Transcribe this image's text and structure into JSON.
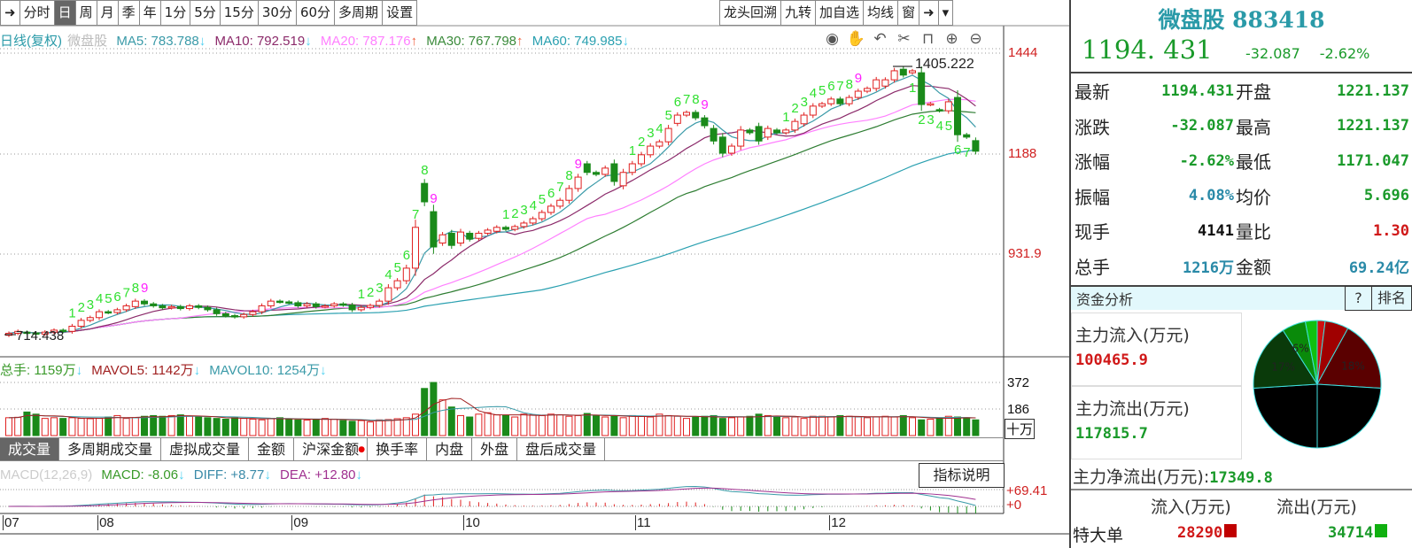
{
  "toolbar": {
    "left": [
      "分时",
      "日",
      "周",
      "月",
      "季",
      "年",
      "1分",
      "5分",
      "15分",
      "30分",
      "60分",
      "多周期",
      "设置"
    ],
    "active": "日",
    "right": [
      "龙头回溯",
      "九转",
      "加自选",
      "均线",
      "窗"
    ],
    "collapse_icon": "collapse-right-icon",
    "dropdown_icon": "chevron-down-icon"
  },
  "legend": {
    "period": "日线(复权)",
    "name": "微盘股",
    "ma5": "MA5: 783.788",
    "ma10": "MA10: 792.519",
    "ma20": "MA20: 787.176",
    "ma30": "MA30: 767.798",
    "ma60": "MA60: 749.985",
    "down": "↓",
    "up": "↑"
  },
  "tools": [
    "eye-icon",
    "hand-icon",
    "undo-icon",
    "scissors-icon",
    "lock-icon",
    "zoom-in-icon",
    "zoom-out-icon"
  ],
  "colors": {
    "up": "#e02020",
    "down": "#1a8a1a",
    "ma5": "#3a9aa8",
    "ma10": "#8b2a6a",
    "ma20": "#ff80ff",
    "ma30": "#2e7d32",
    "ma60": "#2aa0b0",
    "accent": "#2a9aa8"
  },
  "price_axis": {
    "labels": [
      "1444",
      "1188",
      "931.9"
    ],
    "values": [
      1444,
      1188,
      931.9
    ]
  },
  "max_label": "1405.222",
  "min_label": "714.438",
  "chart_data": {
    "type": "candlestick",
    "candles": [
      [
        725,
        730
      ],
      [
        730,
        735
      ],
      [
        733,
        731
      ],
      [
        731,
        728
      ],
      [
        728,
        733
      ],
      [
        733,
        738
      ],
      [
        738,
        735
      ],
      [
        735,
        748
      ],
      [
        748,
        763
      ],
      [
        763,
        770
      ],
      [
        770,
        785
      ],
      [
        785,
        783
      ],
      [
        783,
        790
      ],
      [
        790,
        800
      ],
      [
        798,
        812
      ],
      [
        812,
        805
      ],
      [
        805,
        800
      ],
      [
        800,
        795
      ],
      [
        795,
        798
      ],
      [
        798,
        793
      ],
      [
        793,
        800
      ],
      [
        800,
        796
      ],
      [
        796,
        790
      ],
      [
        790,
        780
      ],
      [
        780,
        775
      ],
      [
        775,
        772
      ],
      [
        772,
        778
      ],
      [
        778,
        785
      ],
      [
        785,
        800
      ],
      [
        800,
        812
      ],
      [
        812,
        810
      ],
      [
        810,
        808
      ],
      [
        808,
        800
      ],
      [
        800,
        805
      ],
      [
        805,
        798
      ],
      [
        798,
        800
      ],
      [
        800,
        805
      ],
      [
        805,
        802
      ],
      [
        802,
        790
      ],
      [
        790,
        796
      ],
      [
        796,
        801
      ],
      [
        801,
        812
      ],
      [
        812,
        846
      ],
      [
        846,
        864
      ],
      [
        864,
        896
      ],
      [
        896,
        1000
      ],
      [
        1112,
        1065
      ],
      [
        1040,
        950
      ],
      [
        960,
        981
      ],
      [
        985,
        954
      ],
      [
        960,
        988
      ],
      [
        985,
        970
      ],
      [
        972,
        985
      ],
      [
        985,
        993
      ],
      [
        990,
        1000
      ],
      [
        1000,
        995
      ],
      [
        995,
        1002
      ],
      [
        1002,
        1011
      ],
      [
        1011,
        1022
      ],
      [
        1022,
        1038
      ],
      [
        1038,
        1054
      ],
      [
        1054,
        1069
      ],
      [
        1069,
        1099
      ],
      [
        1099,
        1128
      ],
      [
        1162,
        1140
      ],
      [
        1140,
        1135
      ],
      [
        1135,
        1151
      ],
      [
        1162,
        1117
      ],
      [
        1106,
        1140
      ],
      [
        1140,
        1162
      ],
      [
        1162,
        1185
      ],
      [
        1185,
        1207
      ],
      [
        1207,
        1218
      ],
      [
        1218,
        1252
      ],
      [
        1265,
        1286
      ],
      [
        1286,
        1293
      ],
      [
        1293,
        1279
      ],
      [
        1279,
        1259
      ],
      [
        1252,
        1220
      ],
      [
        1230,
        1189
      ],
      [
        1189,
        1207
      ],
      [
        1207,
        1248
      ],
      [
        1248,
        1241
      ],
      [
        1257,
        1220
      ],
      [
        1230,
        1252
      ],
      [
        1248,
        1241
      ],
      [
        1241,
        1248
      ],
      [
        1248,
        1270
      ],
      [
        1264,
        1286
      ],
      [
        1286,
        1309
      ],
      [
        1309,
        1315
      ],
      [
        1315,
        1327
      ],
      [
        1327,
        1315
      ],
      [
        1315,
        1331
      ],
      [
        1331,
        1347
      ],
      [
        1347,
        1354
      ],
      [
        1354,
        1376
      ],
      [
        1360,
        1376
      ],
      [
        1376,
        1399
      ],
      [
        1403,
        1388
      ],
      [
        1394,
        1399
      ],
      [
        1394,
        1313
      ],
      [
        1313,
        1315
      ],
      [
        1300,
        1297
      ],
      [
        1297,
        1320
      ],
      [
        1331,
        1236
      ],
      [
        1236,
        1230
      ],
      [
        1221,
        1194
      ]
    ],
    "volume": [
      125,
      128,
      165,
      150,
      120,
      125,
      120,
      125,
      120,
      118,
      120,
      130,
      140,
      120,
      125,
      135,
      140,
      135,
      140,
      145,
      135,
      130,
      125,
      120,
      115,
      125,
      120,
      115,
      110,
      120,
      125,
      115,
      110,
      108,
      112,
      120,
      115,
      105,
      100,
      105,
      95,
      110,
      112,
      118,
      125,
      150,
      330,
      372,
      250,
      200,
      140,
      130,
      150,
      160,
      145,
      140,
      130,
      150,
      145,
      140,
      150,
      145,
      135,
      140,
      155,
      140,
      130,
      135,
      125,
      140,
      135,
      130,
      150,
      140,
      135,
      120,
      130,
      135,
      140,
      120,
      125,
      130,
      135,
      150,
      140,
      130,
      125,
      130,
      120,
      135,
      135,
      130,
      140,
      135,
      130,
      125,
      130,
      135,
      130,
      140,
      125,
      110,
      115,
      120,
      135,
      130,
      125,
      110
    ],
    "volume_axis": {
      "labels": [
        "372",
        "186"
      ],
      "values": [
        372,
        186
      ],
      "unit": "十万"
    },
    "x_ticks": [
      {
        "label": "07",
        "i": 0
      },
      {
        "label": "08",
        "i": 10.5
      },
      {
        "label": "09",
        "i": 32
      },
      {
        "label": "10",
        "i": 51
      },
      {
        "label": "11",
        "i": 70
      },
      {
        "label": "12",
        "i": 91.5
      }
    ],
    "td_sequences": [
      {
        "start": 7,
        "pos": "above",
        "count": 9
      },
      {
        "start": 39,
        "pos": "above",
        "count": 9
      },
      {
        "start": 55,
        "pos": "above",
        "count": 9
      },
      {
        "start": 69,
        "pos": "above",
        "count": 9
      },
      {
        "start": 86,
        "pos": "above",
        "count": 9
      },
      {
        "start": 100,
        "pos": "below",
        "count": 7
      }
    ]
  },
  "volume_legend": {
    "total": "总手: 1159万",
    "mavol5": "MAVOL5: 1142万",
    "mavol10": "MAVOL10: 1254万"
  },
  "tabs": [
    "成交量",
    "多周期成交量",
    "虚拟成交量",
    "金额",
    "沪深金额",
    "换手率",
    "内盘",
    "外盘",
    "盘后成交量"
  ],
  "macd_legend": {
    "name": "MACD(12,26,9)",
    "macd": "MACD: -8.06",
    "diff": "DIFF: +8.77",
    "dea": "DEA: +12.80"
  },
  "macd_axis": {
    "labels": [
      "+69.41",
      "+0"
    ],
    "values": [
      69.41,
      0
    ]
  },
  "indicator_help": "指标说明",
  "panel": {
    "title": "微盘股 883418",
    "price": "1194. 431",
    "change": "-32.087",
    "pct": "-2.62%",
    "rows": [
      {
        "k": "最新",
        "v": "1194.431",
        "vc": "g",
        "k2": "开盘",
        "v2": "1221.137",
        "v2c": "g"
      },
      {
        "k": "涨跌",
        "v": "-32.087",
        "vc": "g",
        "k2": "最高",
        "v2": "1221.137",
        "v2c": "g"
      },
      {
        "k": "涨幅",
        "v": "-2.62%",
        "vc": "g",
        "k2": "最低",
        "v2": "1171.047",
        "v2c": "g"
      },
      {
        "k": "振幅",
        "v": "4.08%",
        "vc": "t",
        "k2": "均价",
        "v2": "5.696",
        "v2c": "g"
      },
      {
        "k": "现手",
        "v": "4141",
        "vc": "b",
        "k2": "量比",
        "v2": "1.30",
        "v2c": "r"
      },
      {
        "k": "总手",
        "v": "1216万",
        "vc": "t",
        "k2": "金额",
        "v2": "69.24亿",
        "v2c": "t"
      }
    ],
    "fund_title": "资金分析",
    "help": "?",
    "rank": "排名",
    "inflow_label": "主力流入(万元)",
    "inflow": "100465.9",
    "outflow_label": "主力流出(万元)",
    "outflow": "117815.7",
    "net_label": "主力净流出(万元):",
    "net": "17349.8",
    "pie": [
      {
        "pct": 2,
        "color": "#d01010",
        "label": ""
      },
      {
        "pct": 6,
        "color": "#a00000",
        "label": ""
      },
      {
        "pct": 18,
        "color": "#5a0000",
        "label": "18%"
      },
      {
        "pct": 24,
        "color": "#000000",
        "label": ""
      },
      {
        "pct": 24,
        "color": "#000000",
        "label": ""
      },
      {
        "pct": 17,
        "color": "#0a3a0a",
        "label": "17%"
      },
      {
        "pct": 6,
        "color": "#0a8a0a",
        "label": "6%"
      },
      {
        "pct": 3,
        "color": "#10c010",
        "label": ""
      }
    ],
    "table_head": [
      "流入(万元)",
      "流出(万元)"
    ],
    "table_rows": [
      {
        "k": "特大单",
        "in": "28290",
        "out": "34714"
      }
    ]
  }
}
